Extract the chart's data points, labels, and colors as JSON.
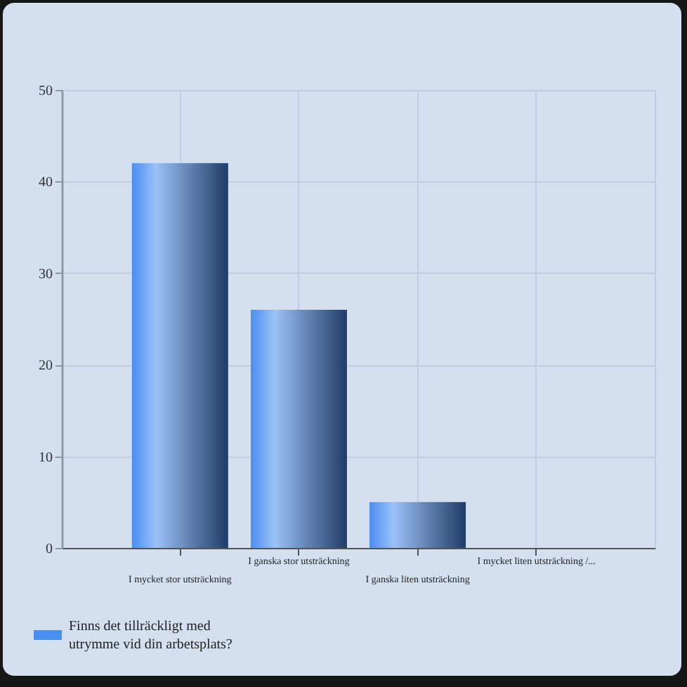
{
  "chart_data": {
    "type": "bar",
    "categories": [
      "I mycket stor utsträckning",
      "I ganska stor utsträckning",
      "I ganska liten utsträckning",
      "I mycket liten utsträckning /..."
    ],
    "series": [
      {
        "name": "Finns det tillräckligt med utrymme vid din arbetsplats?",
        "color": "#4a8ef0",
        "values": [
          42,
          26,
          5,
          0
        ]
      }
    ],
    "ylim": [
      0,
      50
    ],
    "yticks": [
      0,
      10,
      20,
      30,
      40,
      50
    ],
    "grid": true,
    "legend": "bottom left"
  }
}
